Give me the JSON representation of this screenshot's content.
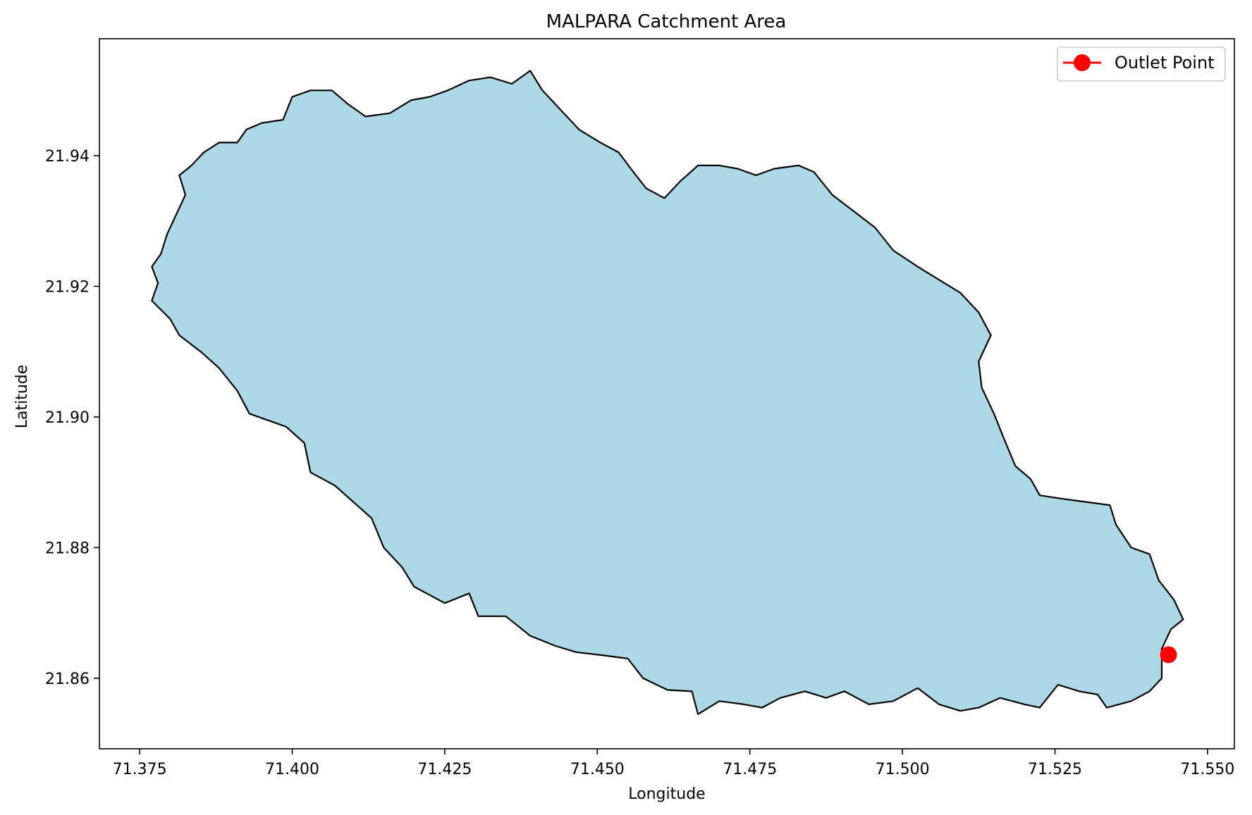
{
  "title": "MALPARA Catchment Area",
  "xlabel": "Longitude",
  "ylabel": "Latitude",
  "colors": {
    "catchment_fill": "#add8e6",
    "catchment_edge": "#000000",
    "outlet": "#ff0000"
  },
  "legend": {
    "position": "top-right",
    "entries": [
      {
        "label": "Outlet Point",
        "marker": "circle",
        "color": "#ff0000"
      }
    ]
  },
  "map_data": {
    "type": "polygon-map",
    "xlim": [
      71.3684,
      71.5544
    ],
    "ylim": [
      21.8492,
      21.9579
    ],
    "xticks": [
      {
        "value": 71.375,
        "label": "71.375"
      },
      {
        "value": 71.4,
        "label": "71.400"
      },
      {
        "value": 71.425,
        "label": "71.425"
      },
      {
        "value": 71.45,
        "label": "71.450"
      },
      {
        "value": 71.475,
        "label": "71.475"
      },
      {
        "value": 71.5,
        "label": "71.500"
      },
      {
        "value": 71.525,
        "label": "71.525"
      },
      {
        "value": 71.55,
        "label": "71.550"
      }
    ],
    "yticks": [
      {
        "value": 21.86,
        "label": "21.86"
      },
      {
        "value": 21.88,
        "label": "21.88"
      },
      {
        "value": 21.9,
        "label": "21.90"
      },
      {
        "value": 21.92,
        "label": "21.92"
      },
      {
        "value": 21.94,
        "label": "21.94"
      }
    ],
    "catchment_boundary": [
      [
        71.377,
        21.9178
      ],
      [
        71.38,
        21.915
      ],
      [
        71.3815,
        21.9125
      ],
      [
        71.385,
        21.91
      ],
      [
        71.388,
        21.9075
      ],
      [
        71.391,
        21.904
      ],
      [
        71.393,
        21.9005
      ],
      [
        71.399,
        21.8985
      ],
      [
        71.402,
        21.896
      ],
      [
        71.403,
        21.8915
      ],
      [
        71.407,
        21.8895
      ],
      [
        71.41,
        21.887
      ],
      [
        71.413,
        21.8845
      ],
      [
        71.415,
        21.88
      ],
      [
        71.418,
        21.877
      ],
      [
        71.42,
        21.874
      ],
      [
        71.425,
        21.8715
      ],
      [
        71.429,
        21.873
      ],
      [
        71.4305,
        21.8695
      ],
      [
        71.435,
        21.8695
      ],
      [
        71.439,
        21.8665
      ],
      [
        71.443,
        21.865
      ],
      [
        71.4465,
        21.864
      ],
      [
        71.451,
        21.8635
      ],
      [
        71.455,
        21.863
      ],
      [
        71.4575,
        21.86
      ],
      [
        71.4615,
        21.8582
      ],
      [
        71.4655,
        21.858
      ],
      [
        71.4665,
        21.8545
      ],
      [
        71.47,
        21.8565
      ],
      [
        71.474,
        21.856
      ],
      [
        71.477,
        21.8555
      ],
      [
        71.48,
        21.857
      ],
      [
        71.484,
        21.858
      ],
      [
        71.4875,
        21.857
      ],
      [
        71.4905,
        21.858
      ],
      [
        71.4945,
        21.856
      ],
      [
        71.4985,
        21.8565
      ],
      [
        71.5025,
        21.8585
      ],
      [
        71.506,
        21.856
      ],
      [
        71.5095,
        21.855
      ],
      [
        71.5125,
        21.8555
      ],
      [
        71.516,
        21.857
      ],
      [
        71.52,
        21.856
      ],
      [
        71.5225,
        21.8555
      ],
      [
        71.5255,
        21.859
      ],
      [
        71.529,
        21.858
      ],
      [
        71.532,
        21.8575
      ],
      [
        71.5335,
        21.8555
      ],
      [
        71.5375,
        21.8565
      ],
      [
        71.5405,
        21.858
      ],
      [
        71.5425,
        21.86
      ],
      [
        71.5425,
        21.8645
      ],
      [
        71.544,
        21.8675
      ],
      [
        71.546,
        21.869
      ],
      [
        71.5445,
        21.872
      ],
      [
        71.542,
        21.875
      ],
      [
        71.5405,
        21.879
      ],
      [
        71.5375,
        21.88
      ],
      [
        71.535,
        21.8835
      ],
      [
        71.534,
        21.8865
      ],
      [
        71.53,
        21.887
      ],
      [
        71.526,
        21.8875
      ],
      [
        71.5225,
        21.888
      ],
      [
        71.521,
        21.8905
      ],
      [
        71.5185,
        21.8925
      ],
      [
        71.5165,
        21.897
      ],
      [
        71.515,
        21.9005
      ],
      [
        71.513,
        21.9045
      ],
      [
        71.5125,
        21.9085
      ],
      [
        71.5145,
        21.9125
      ],
      [
        71.5125,
        21.916
      ],
      [
        71.5095,
        21.919
      ],
      [
        71.506,
        21.921
      ],
      [
        71.5025,
        21.923
      ],
      [
        71.4985,
        21.9255
      ],
      [
        71.4955,
        21.929
      ],
      [
        71.492,
        21.9315
      ],
      [
        71.4885,
        21.934
      ],
      [
        71.4855,
        21.9375
      ],
      [
        71.483,
        21.9385
      ],
      [
        71.479,
        21.938
      ],
      [
        71.476,
        21.937
      ],
      [
        71.473,
        21.938
      ],
      [
        71.47,
        21.9385
      ],
      [
        71.4665,
        21.9385
      ],
      [
        71.4635,
        21.936
      ],
      [
        71.461,
        21.9335
      ],
      [
        71.458,
        21.935
      ],
      [
        71.4555,
        21.938
      ],
      [
        71.4535,
        21.9405
      ],
      [
        71.4505,
        21.942
      ],
      [
        71.447,
        21.944
      ],
      [
        71.444,
        21.947
      ],
      [
        71.441,
        21.95
      ],
      [
        71.439,
        21.953
      ],
      [
        71.436,
        21.951
      ],
      [
        71.4325,
        21.952
      ],
      [
        71.429,
        21.9515
      ],
      [
        71.4255,
        21.95
      ],
      [
        71.4225,
        21.949
      ],
      [
        71.4195,
        21.9485
      ],
      [
        71.416,
        21.9465
      ],
      [
        71.412,
        21.946
      ],
      [
        71.409,
        21.948
      ],
      [
        71.4065,
        21.95
      ],
      [
        71.403,
        21.95
      ],
      [
        71.4,
        21.949
      ],
      [
        71.3985,
        21.9455
      ],
      [
        71.395,
        21.945
      ],
      [
        71.3925,
        21.944
      ],
      [
        71.391,
        21.942
      ],
      [
        71.388,
        21.942
      ],
      [
        71.3855,
        21.9405
      ],
      [
        71.3835,
        21.9385
      ],
      [
        71.3815,
        21.937
      ],
      [
        71.3825,
        21.934
      ],
      [
        71.381,
        21.931
      ],
      [
        71.3795,
        21.928
      ],
      [
        71.3785,
        21.925
      ],
      [
        71.377,
        21.923
      ],
      [
        71.378,
        21.9205
      ]
    ],
    "outlet_point": {
      "lon": 71.5436,
      "lat": 21.8636
    }
  }
}
